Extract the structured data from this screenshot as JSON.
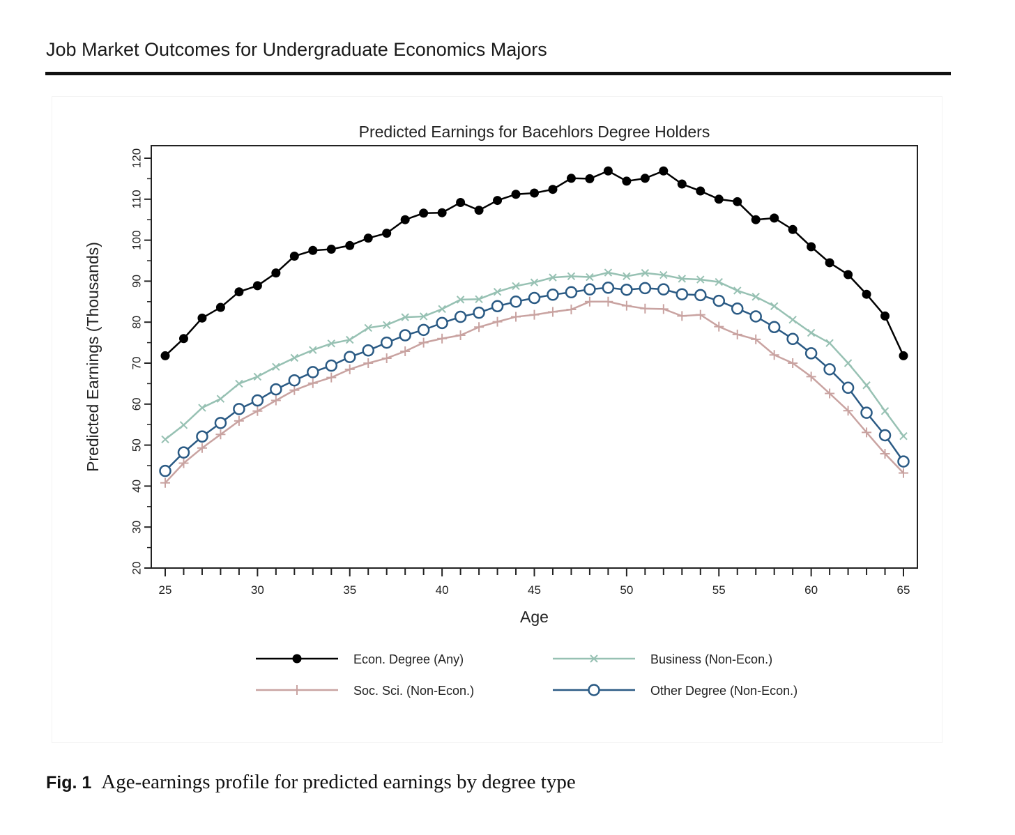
{
  "header": {
    "running_title": "Job Market Outcomes for Undergraduate Economics Majors"
  },
  "caption": {
    "label": "Fig. 1",
    "text": "Age-earnings profile for predicted earnings by degree type"
  },
  "chart_data": {
    "type": "line",
    "title": "Predicted Earnings for Bacehlors Degree Holders",
    "xlabel": "Age",
    "ylabel": "Predicted Earnings (Thousands)",
    "xlim": [
      25,
      65
    ],
    "ylim": [
      20,
      120
    ],
    "xticks": [
      25,
      30,
      35,
      40,
      45,
      50,
      55,
      60,
      65
    ],
    "yticks": [
      20,
      30,
      40,
      50,
      60,
      70,
      80,
      90,
      100,
      110,
      120
    ],
    "grid": false,
    "legend_position": "bottom",
    "x": [
      25,
      26,
      27,
      28,
      29,
      30,
      31,
      32,
      33,
      34,
      35,
      36,
      37,
      38,
      39,
      40,
      41,
      42,
      43,
      44,
      45,
      46,
      47,
      48,
      49,
      50,
      51,
      52,
      53,
      54,
      55,
      56,
      57,
      58,
      59,
      60,
      61,
      62,
      63,
      64,
      65
    ],
    "series": [
      {
        "name": "Econ. Degree (Any)",
        "color": "#000000",
        "marker": "filled-circle",
        "values": [
          71.8,
          76,
          81,
          83.6,
          87.4,
          88.9,
          92,
          96.1,
          97.5,
          97.8,
          98.7,
          100.5,
          101.7,
          105,
          106.6,
          106.7,
          109.2,
          107.3,
          109.7,
          111.2,
          111.5,
          112.4,
          115.1,
          115,
          116.9,
          114.4,
          115.1,
          116.9,
          113.7,
          112,
          110,
          109.4,
          105,
          105.4,
          102.6,
          98.4,
          94.5,
          91.6,
          86.8,
          81.5,
          71.8
        ]
      },
      {
        "name": "Business (Non-Econ.)",
        "color": "#97c1b3",
        "marker": "x",
        "values": [
          51.4,
          54.9,
          59.1,
          61.3,
          65,
          66.7,
          69.1,
          71.3,
          73.2,
          74.8,
          75.7,
          78.6,
          79.3,
          81.2,
          81.4,
          83.2,
          85.5,
          85.6,
          87.4,
          88.8,
          89.7,
          90.9,
          91.2,
          91,
          92.1,
          91.2,
          92,
          91.5,
          90.6,
          90.4,
          89.8,
          87.7,
          86.2,
          83.9,
          80.6,
          77.4,
          74.9,
          70,
          64.6,
          58.3,
          52.2
        ]
      },
      {
        "name": "Soc. Sci. (Non-Econ.)",
        "color": "#c9a3a1",
        "marker": "plus",
        "values": [
          40.8,
          45.6,
          49.3,
          52.6,
          55.9,
          58.3,
          60.9,
          63.4,
          65.1,
          66.5,
          68.5,
          70,
          71.2,
          72.9,
          75,
          76,
          76.8,
          78.8,
          80.1,
          81.3,
          81.8,
          82.5,
          83.1,
          85,
          85,
          84,
          83.3,
          83.2,
          81.5,
          81.8,
          78.9,
          77,
          75.8,
          72,
          70,
          66.7,
          62.6,
          58.4,
          53.1,
          47.9,
          43.2
        ]
      },
      {
        "name": "Other Degree (Non-Econ.)",
        "color": "#2a5a84",
        "marker": "open-circle",
        "values": [
          43.7,
          48.2,
          52.1,
          55.4,
          58.8,
          60.9,
          63.6,
          65.8,
          67.8,
          69.4,
          71.5,
          73.1,
          75,
          76.8,
          78.1,
          79.8,
          81.3,
          82.3,
          83.9,
          85,
          85.9,
          86.7,
          87.3,
          88,
          88.4,
          87.9,
          88.3,
          88,
          86.8,
          86.6,
          85.2,
          83.3,
          81.4,
          78.8,
          75.9,
          72.4,
          68.5,
          64,
          57.9,
          52.4,
          46
        ]
      }
    ]
  }
}
